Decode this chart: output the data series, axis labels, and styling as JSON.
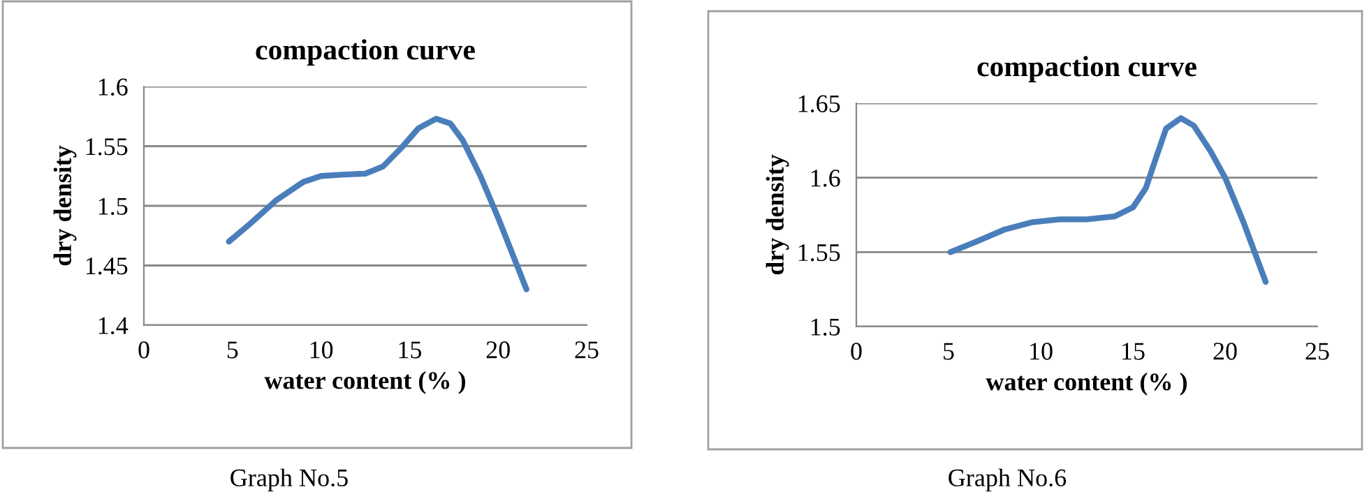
{
  "chart_data": [
    {
      "type": "line",
      "title": "compaction curve",
      "xlabel": "water content (% )",
      "ylabel": "dry density",
      "annotations": [
        "Graph No.5"
      ],
      "series": [
        {
          "color": "#4a7ebb",
          "x": [
            4.8,
            6,
            7.5,
            9,
            10,
            11,
            12.5,
            13.5,
            14.5,
            15.5,
            16.5,
            17.3,
            18,
            19,
            20,
            21.6
          ],
          "values": [
            1.47,
            1.485,
            1.505,
            1.52,
            1.525,
            1.526,
            1.527,
            1.533,
            1.548,
            1.565,
            1.573,
            1.569,
            1.555,
            1.525,
            1.49,
            1.43
          ]
        }
      ],
      "xlim": [
        0,
        25
      ],
      "xticks": [
        0,
        5,
        10,
        15,
        20,
        25
      ],
      "ylim": [
        1.4,
        1.6
      ],
      "yticks": [
        1.4,
        1.45,
        1.5,
        1.55,
        1.6
      ],
      "grid": "y",
      "legend": false,
      "marker": "none",
      "line_style": "solid"
    },
    {
      "type": "line",
      "title": "compaction curve",
      "xlabel": "water content (% )",
      "ylabel": "dry density",
      "annotations": [
        "Graph No.6"
      ],
      "series": [
        {
          "color": "#4a7ebb",
          "x": [
            5.1,
            6.5,
            8,
            9.5,
            11,
            12.5,
            14,
            15,
            15.7,
            16.3,
            16.8,
            17.6,
            18.3,
            19.2,
            20,
            21,
            22.2
          ],
          "values": [
            1.55,
            1.557,
            1.565,
            1.57,
            1.572,
            1.572,
            1.574,
            1.58,
            1.593,
            1.615,
            1.633,
            1.64,
            1.635,
            1.618,
            1.6,
            1.57,
            1.53
          ]
        }
      ],
      "xlim": [
        0,
        25
      ],
      "xticks": [
        0,
        5,
        10,
        15,
        20,
        25
      ],
      "ylim": [
        1.5,
        1.65
      ],
      "yticks": [
        1.5,
        1.55,
        1.6,
        1.65
      ],
      "grid": "y",
      "legend": false,
      "marker": "none",
      "line_style": "solid"
    }
  ]
}
